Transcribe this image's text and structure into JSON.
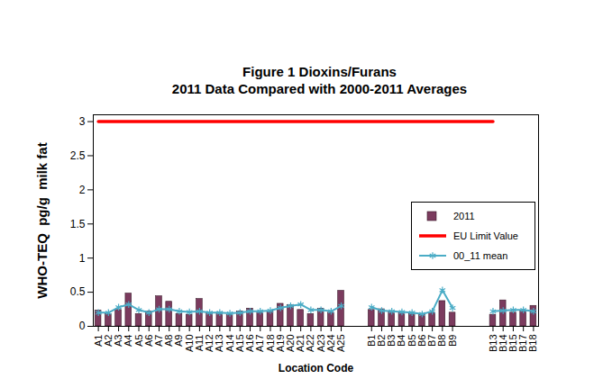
{
  "chart_data": {
    "type": "bar",
    "title": "Figure 1 Dioxins/Furans",
    "subtitle": "2011 Data Compared with 2000-2011 Averages",
    "x_label": "Location Code",
    "y_label": "WHO-TEQ  pg/g  milk fat",
    "categories": [
      "A1",
      "A2",
      "A3",
      "A4",
      "A5",
      "A6",
      "A7",
      "A8",
      "A9",
      "A10",
      "A11",
      "A12",
      "A13",
      "A14",
      "A15",
      "A16",
      "A17",
      "A18",
      "A19",
      "A20",
      "A21",
      "A22",
      "A23",
      "A24",
      "A25",
      null,
      null,
      "B1",
      "B2",
      "B3",
      "B4",
      "B5",
      "B6",
      "B7",
      "B8",
      "B9",
      null,
      null,
      null,
      "B13",
      "B14",
      "B15",
      "B17",
      "B18"
    ],
    "series": [
      {
        "name": "2011",
        "type": "bar",
        "color": "#7b3b5e",
        "values": [
          0.23,
          0.18,
          0.24,
          0.48,
          0.18,
          0.22,
          0.44,
          0.36,
          0.18,
          0.17,
          0.4,
          0.2,
          0.2,
          0.17,
          0.22,
          0.26,
          0.2,
          0.22,
          0.33,
          0.31,
          0.24,
          0.18,
          0.26,
          0.2,
          0.52,
          null,
          null,
          0.24,
          0.25,
          0.22,
          0.2,
          0.18,
          0.18,
          0.2,
          0.37,
          0.2,
          null,
          null,
          null,
          0.17,
          0.38,
          0.2,
          0.22,
          0.3
        ]
      },
      {
        "name": "EU Limit Value",
        "type": "line",
        "color": "#ff0000",
        "values": [
          3,
          3,
          3,
          3,
          3,
          3,
          3,
          3,
          3,
          3,
          3,
          3,
          3,
          3,
          3,
          3,
          3,
          3,
          3,
          3,
          3,
          3,
          3,
          3,
          3,
          3,
          3,
          3,
          3,
          3,
          3,
          3,
          3,
          3,
          3,
          3,
          3,
          3,
          3,
          3,
          null,
          null,
          null,
          null
        ]
      },
      {
        "name": "00_11 mean",
        "type": "line",
        "color": "#4bacc6",
        "marker": "asterisk",
        "values": [
          0.2,
          0.2,
          0.28,
          0.32,
          0.24,
          0.2,
          0.25,
          0.25,
          0.22,
          0.21,
          0.22,
          0.2,
          0.2,
          0.19,
          0.2,
          0.22,
          0.22,
          0.23,
          0.27,
          0.3,
          0.32,
          0.24,
          0.24,
          0.22,
          0.3,
          null,
          null,
          0.28,
          0.23,
          0.22,
          0.21,
          0.2,
          0.18,
          0.22,
          0.53,
          0.27,
          null,
          null,
          null,
          0.22,
          0.23,
          0.24,
          0.24,
          0.22
        ]
      }
    ],
    "ylim": [
      0,
      3.1
    ],
    "yticks": [
      0,
      0.5,
      1,
      1.5,
      2,
      2.5,
      3
    ],
    "legend": "right"
  }
}
